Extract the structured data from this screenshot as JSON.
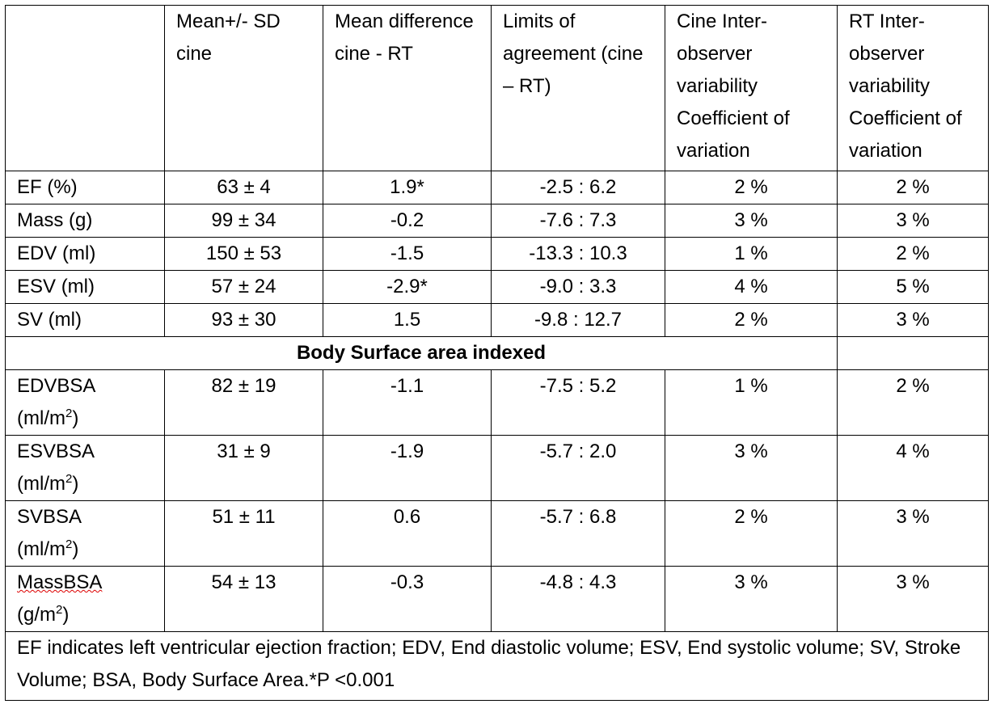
{
  "table": {
    "header": [
      "Mean+/- SD cine",
      "Mean difference cine - RT",
      "Limits of agreement (cine – RT)",
      "Cine Inter-observer variability Coefficient of variation",
      "RT Inter-observer variability Coefficient of variation"
    ],
    "rows": [
      [
        "EF (%)",
        "63 ± 4",
        "1.9*",
        "-2.5 : 6.2",
        "2 %",
        "2 %"
      ],
      [
        "Mass (g)",
        "99 ± 34",
        "-0.2",
        "-7.6 : 7.3",
        "3 %",
        "3 %"
      ],
      [
        "EDV (ml)",
        "150 ± 53",
        "-1.5",
        "-13.3 : 10.3",
        "1 %",
        "2 %"
      ],
      [
        "ESV (ml)",
        "57 ± 24",
        "-2.9*",
        "-9.0 : 3.3",
        "4 %",
        "5 %"
      ],
      [
        "SV (ml)",
        "93 ± 30",
        "1.5",
        "-9.8 : 12.7",
        "2 %",
        "3 %"
      ]
    ],
    "section": "Body Surface area indexed",
    "indexed_rows": [
      {
        "name": "EDVBSA",
        "unit": "(ml/m",
        "sup": "2",
        "close": ")",
        "cells": [
          "82 ± 19",
          "-1.1",
          "-7.5 : 5.2",
          "1 %",
          "2 %"
        ]
      },
      {
        "name": "ESVBSA",
        "unit": "(ml/m",
        "sup": "2",
        "close": ")",
        "cells": [
          "31 ± 9",
          "-1.9",
          "-5.7 : 2.0",
          "3 %",
          "4 %"
        ]
      },
      {
        "name": "SVBSA",
        "unit": "(ml/m",
        "sup": "2",
        "close": ")",
        "cells": [
          "51 ± 11",
          "0.6",
          "-5.7 : 6.8",
          "2 %",
          "3 %"
        ]
      },
      {
        "name": "MassBSA",
        "unit": "(g/m",
        "sup": "2",
        "close": ")",
        "cells": [
          "54 ± 13",
          "-0.3",
          "-4.8 : 4.3",
          "3 %",
          "3 %"
        ]
      }
    ],
    "footnote": "EF indicates left ventricular ejection fraction; EDV, End diastolic volume; ESV, End systolic volume; SV, Stroke Volume; BSA, Body Surface Area.*P <0.001"
  }
}
